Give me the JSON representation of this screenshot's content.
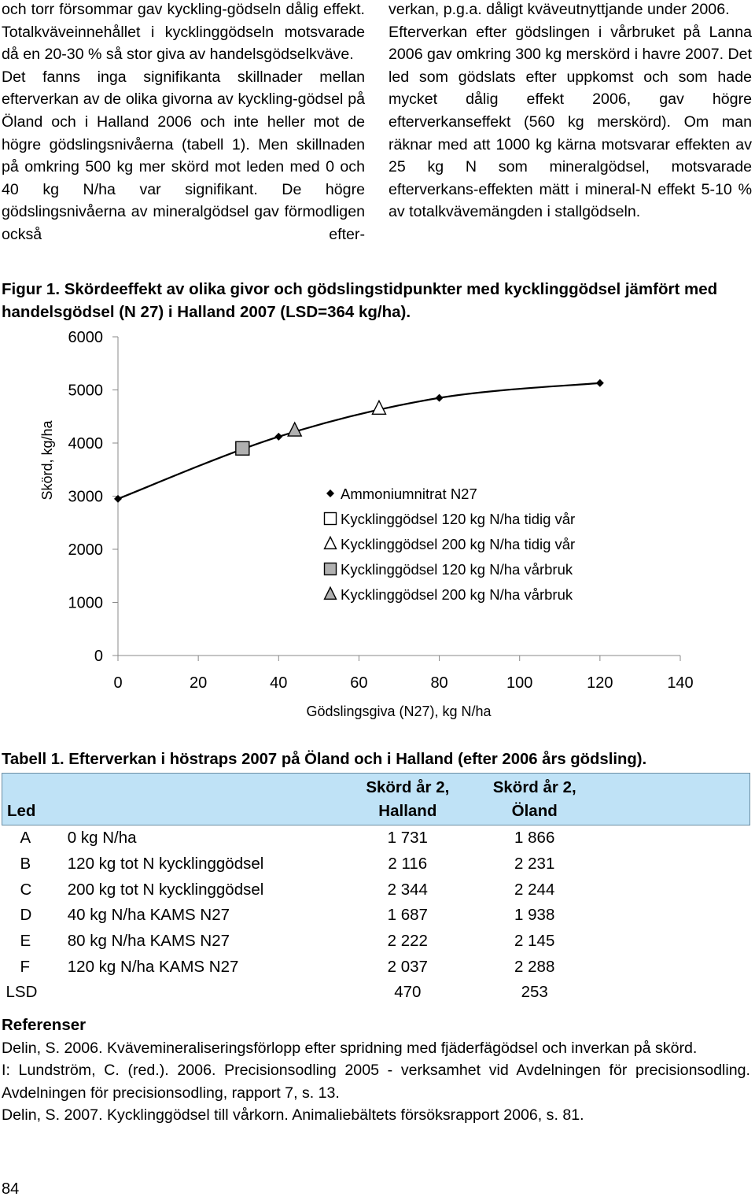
{
  "body_text": {
    "left_column": [
      "och torr försommar gav kyckling-gödseln dålig effekt. Totalkväveinnehållet i kycklinggödseln motsvarade då en 20-30 % så stor giva av handelsgödselkväve.",
      "Det fanns inga signifikanta skillnader mellan efterverkan av de olika givorna av kyckling-gödsel på Öland och i Halland 2006 och inte heller mot de högre gödslingsnivåerna (tabell 1). Men skillnaden på omkring 500 kg mer skörd mot leden med 0 och 40 kg N/ha var signifikant. De högre gödslingsnivåerna av mineralgödsel gav förmodligen också efter-"
    ],
    "right_column": [
      "verkan, p.g.a. dåligt kväveutnyttjande under 2006.",
      "Efterverkan efter gödslingen i vårbruket på Lanna 2006 gav omkring 300 kg merskörd i havre 2007. Det led som gödslats efter uppkomst och som hade mycket dålig effekt 2006, gav högre efterverkanseffekt (560 kg merskörd). Om man räknar med att 1000 kg kärna motsvarar effekten av 25 kg N som mineralgödsel, motsvarade efterverkans-effekten mätt i mineral-N effekt 5-10 % av totalkvävemängden i stallgödseln."
    ]
  },
  "figure": {
    "caption": "Figur 1. Skördeeffekt av olika givor och gödslingstidpunkter med kycklinggödsel jämfört med handelsgödsel (N 27) i Halland 2007 (LSD=364 kg/ha)."
  },
  "chart_data": {
    "type": "scatter",
    "title": "",
    "xlabel": "Gödslingsgiva (N27), kg N/ha",
    "ylabel": "Skörd, kg/ha",
    "xlim": [
      0,
      140
    ],
    "ylim": [
      0,
      6000
    ],
    "x_ticks": [
      0,
      20,
      40,
      60,
      80,
      100,
      120,
      140
    ],
    "y_ticks": [
      0,
      1000,
      2000,
      3000,
      4000,
      5000,
      6000
    ],
    "grid": false,
    "legend_position": "center-right",
    "series": [
      {
        "name": "Ammoniumnitrat N27",
        "marker": "diamond",
        "fill": "#000000",
        "line": true,
        "points": [
          [
            0,
            2950
          ],
          [
            40,
            4120
          ],
          [
            80,
            4850
          ],
          [
            120,
            5130
          ]
        ]
      },
      {
        "name": "Kycklinggödsel 120 kg N/ha tidig vår",
        "marker": "square",
        "fill": "#ffffff",
        "line": false,
        "points": []
      },
      {
        "name": "Kycklinggödsel 200 kg N/ha tidig vår",
        "marker": "triangle",
        "fill": "#ffffff",
        "line": false,
        "points": [
          [
            65,
            4650
          ]
        ]
      },
      {
        "name": "Kycklinggödsel 120 kg N/ha vårbruk",
        "marker": "square",
        "fill": "#b0b0b0",
        "line": false,
        "points": [
          [
            31,
            3900
          ]
        ]
      },
      {
        "name": "Kycklinggödsel 200 kg N/ha vårbruk",
        "marker": "triangle",
        "fill": "#b0b0b0",
        "line": false,
        "points": [
          [
            44,
            4240
          ]
        ]
      }
    ]
  },
  "table": {
    "caption": "Tabell 1. Efterverkan i höstraps 2007 på Öland och i Halland (efter 2006 års gödsling).",
    "header": {
      "led": "Led",
      "halland_line1": "Skörd år 2,",
      "halland_line2": "Halland",
      "oland_line1": "Skörd år 2,",
      "oland_line2": "Öland"
    },
    "rows": [
      {
        "code": "A",
        "treatment": "0 kg N/ha",
        "halland": "1 731",
        "oland": "1 866"
      },
      {
        "code": "B",
        "treatment": "120 kg tot N kycklinggödsel",
        "halland": "2 116",
        "oland": "2 231"
      },
      {
        "code": "C",
        "treatment": "200 kg tot N kycklinggödsel",
        "halland": "2 344",
        "oland": "2 244"
      },
      {
        "code": "D",
        "treatment": "40 kg N/ha KAMS N27",
        "halland": "1 687",
        "oland": "1 938"
      },
      {
        "code": "E",
        "treatment": "80 kg N/ha KAMS N27",
        "halland": "2 222",
        "oland": "2 145"
      },
      {
        "code": "F",
        "treatment": "120 kg N/ha KAMS N27",
        "halland": "2 037",
        "oland": "2 288"
      }
    ],
    "lsd": {
      "label": "LSD",
      "halland": "470",
      "oland": "253"
    }
  },
  "references": {
    "heading": "Referenser",
    "items": [
      "Delin, S. 2006. Kvävemineraliseringsförlopp efter spridning med fjäderfägödsel och inverkan på skörd.",
      "I: Lundström, C. (red.). 2006. Precisionsodling 2005 - verksamhet vid Avdelningen för precisionsodling. Avdelningen för precisionsodling, rapport 7, s. 13.",
      "Delin, S. 2007. Kycklinggödsel till vårkorn. Animaliebältets försöksrapport 2006, s. 81."
    ]
  },
  "page_number": "84"
}
